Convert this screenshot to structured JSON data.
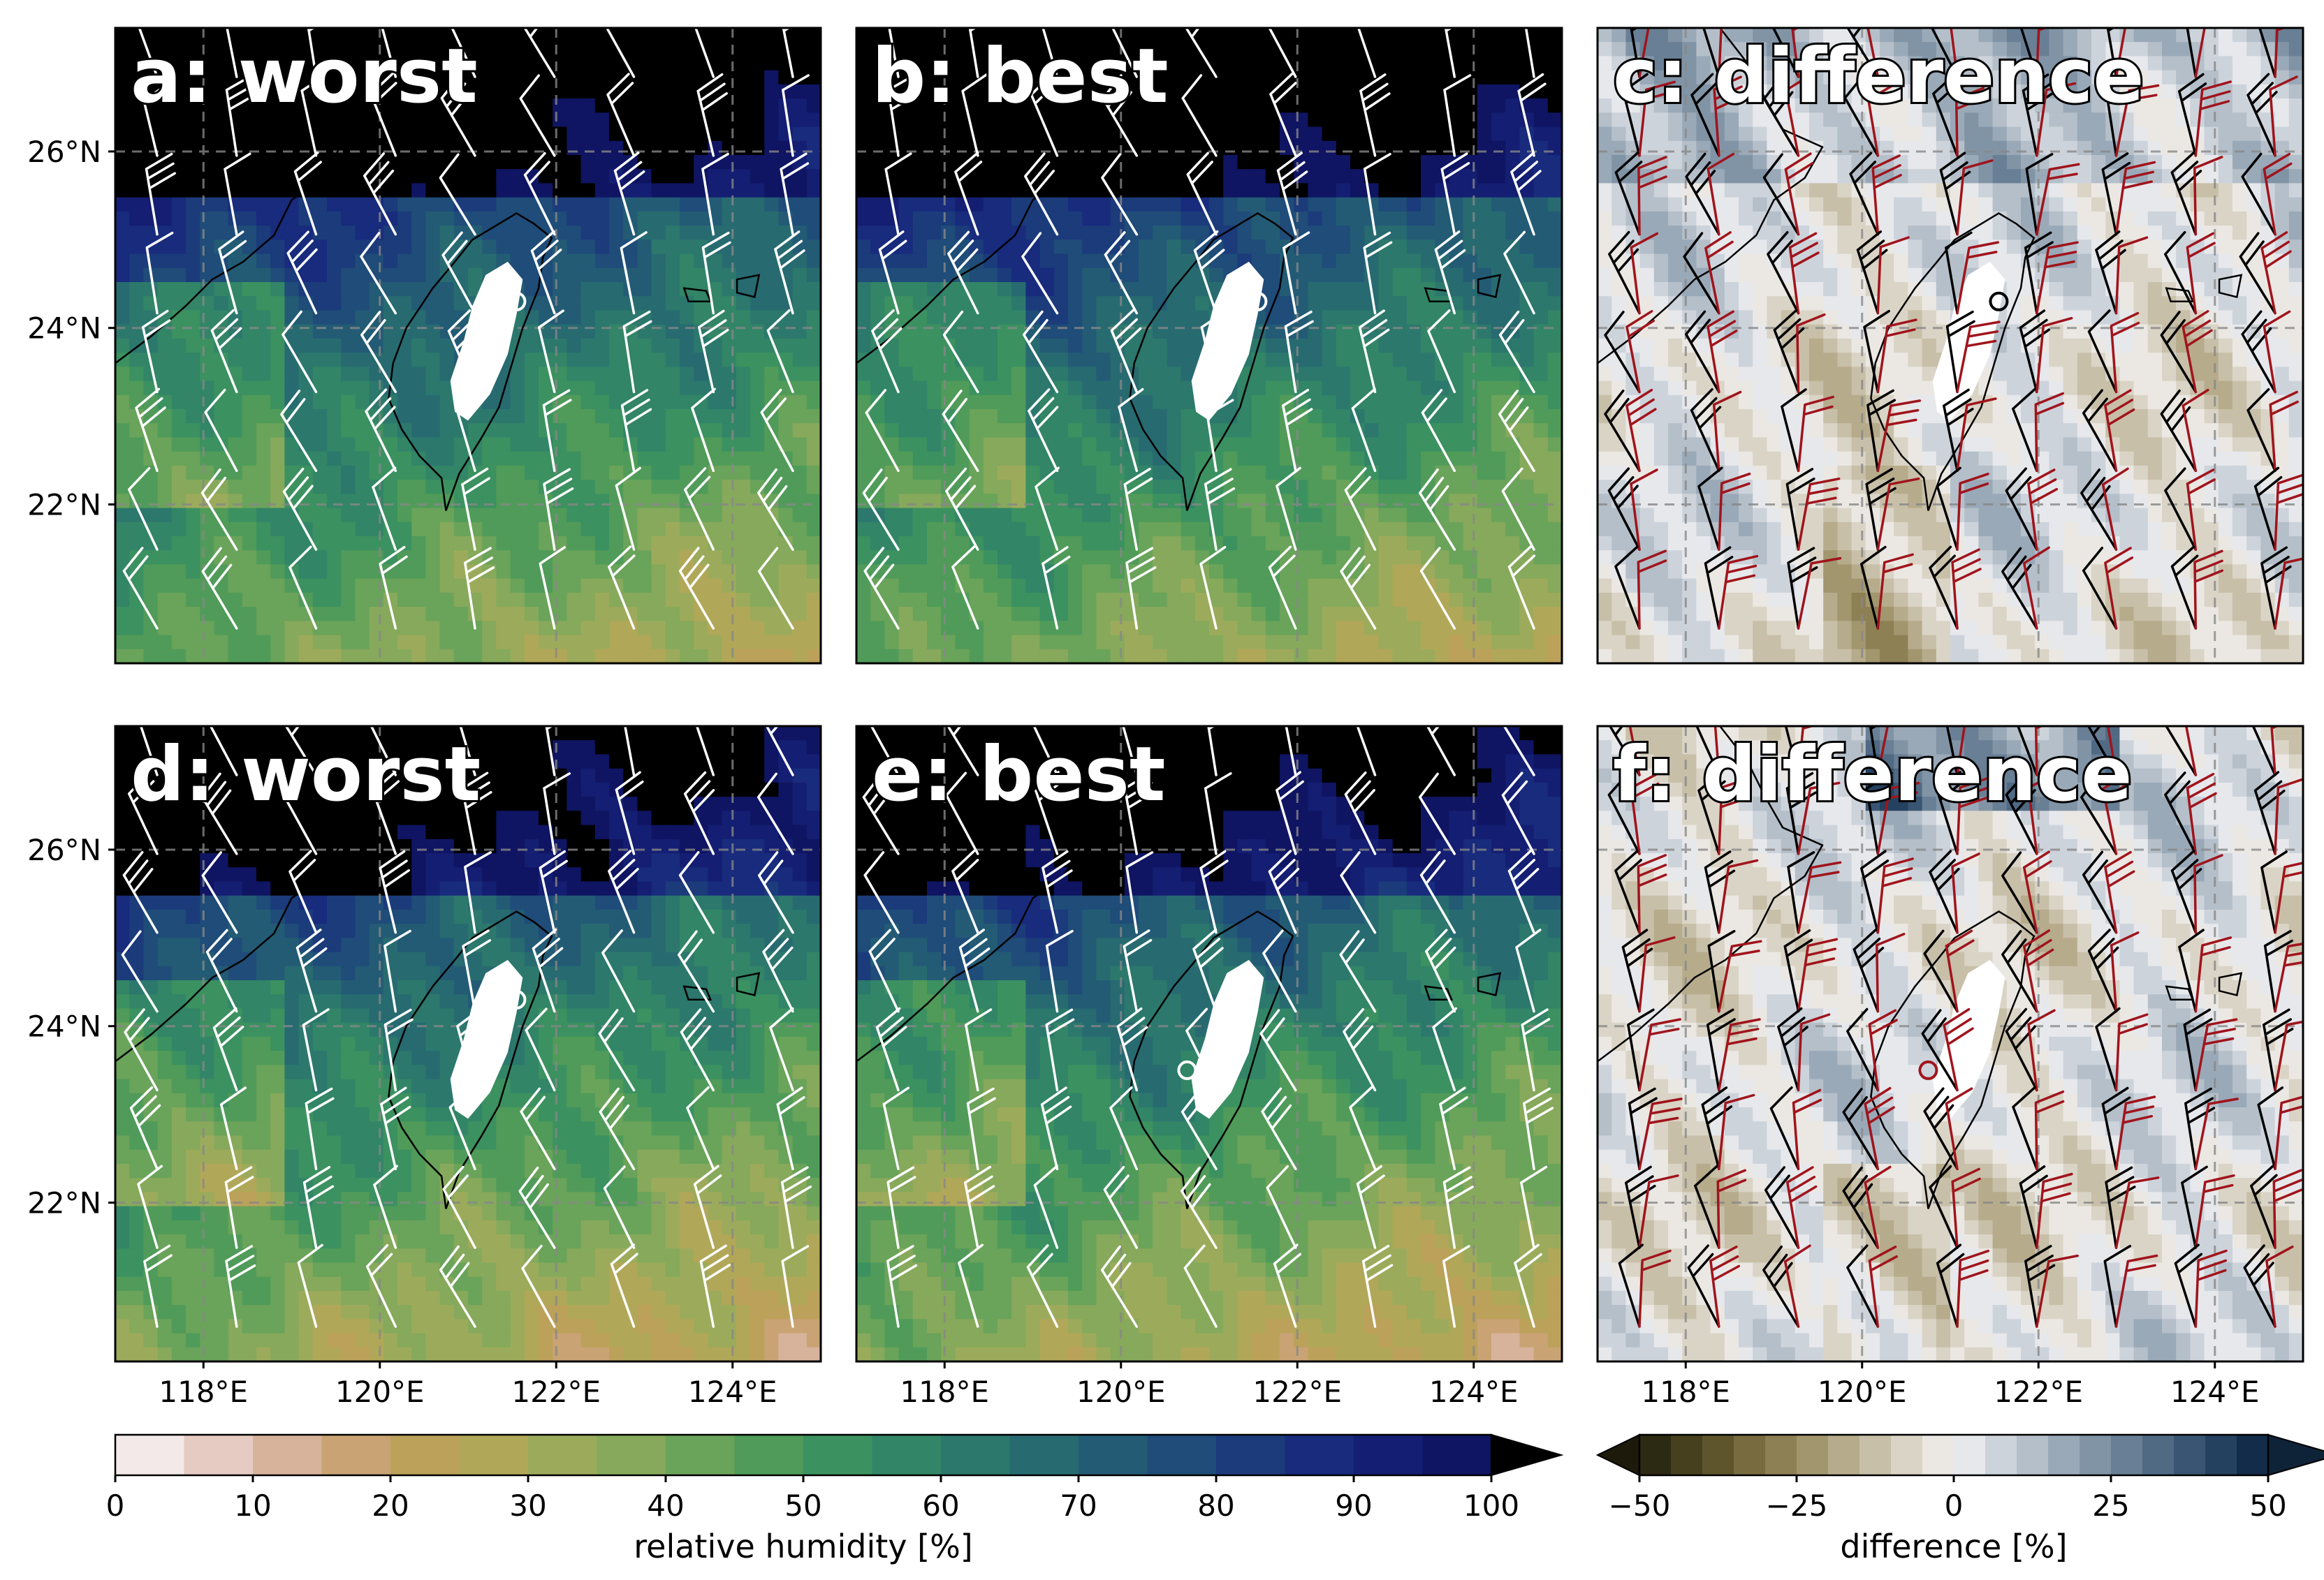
{
  "figure": {
    "panels": [
      {
        "id": "a",
        "label": "a: worst",
        "kind": "rh",
        "variant": 0
      },
      {
        "id": "b",
        "label": "b: best",
        "kind": "rh",
        "variant": 1
      },
      {
        "id": "c",
        "label": "c: difference",
        "kind": "diff",
        "variant": 2
      },
      {
        "id": "d",
        "label": "d: worst",
        "kind": "rh",
        "variant": 3
      },
      {
        "id": "e",
        "label": "e: best",
        "kind": "rh",
        "variant": 4
      },
      {
        "id": "f",
        "label": "f: difference",
        "kind": "diff",
        "variant": 5
      }
    ],
    "axes": {
      "lat_ticks": [
        "26°N",
        "24°N",
        "22°N"
      ],
      "lat_values": [
        26,
        24,
        22
      ],
      "lon_ticks": [
        "118°E",
        "120°E",
        "122°E",
        "124°E"
      ],
      "lon_values": [
        118,
        120,
        122,
        124
      ],
      "lon_range": [
        117.0,
        125.0
      ],
      "lat_range": [
        20.2,
        27.4
      ]
    },
    "colorbars": [
      {
        "label": "relative humidity [%]",
        "ticks": [
          "0",
          "10",
          "20",
          "30",
          "40",
          "50",
          "60",
          "70",
          "80",
          "90",
          "100"
        ],
        "range": [
          0,
          100
        ],
        "extend": "max",
        "colors": [
          "#f3e9e9",
          "#e5cbc2",
          "#d8b39b",
          "#c9a374",
          "#bca15a",
          "#b1a758",
          "#9cab5b",
          "#86a95b",
          "#6aa35a",
          "#509b59",
          "#3c9160",
          "#328567",
          "#2c786d",
          "#276b71",
          "#235b75",
          "#1f4c78",
          "#1b3b7b",
          "#182b7d",
          "#141e72",
          "#0f1562"
        ],
        "extend_color": "#000000"
      },
      {
        "label": "difference [%]",
        "ticks": [
          "−50",
          "−25",
          "0",
          "25",
          "50"
        ],
        "range": [
          -50,
          50
        ],
        "extend": "both",
        "colors": [
          "#2d2a14",
          "#46401f",
          "#5f552d",
          "#776b3f",
          "#8d8055",
          "#a2966f",
          "#b6ab8b",
          "#c8bfa8",
          "#dad4c6",
          "#ebe8e3",
          "#e6e8ec",
          "#cdd3db",
          "#b4bfc9",
          "#9aa9b8",
          "#8194a6",
          "#687f95",
          "#506a84",
          "#3a5573",
          "#254160",
          "#132c4a"
        ],
        "extend_color_low": "#1d1a0b",
        "extend_color_high": "#0f2338"
      }
    ],
    "colors": {
      "barb_rh": "#ffffff",
      "barb_diff_1": "#000000",
      "barb_diff_2": "#a0141c",
      "coast": "#000000",
      "terrain_mask": "#ffffff",
      "grid": "#888888"
    }
  }
}
